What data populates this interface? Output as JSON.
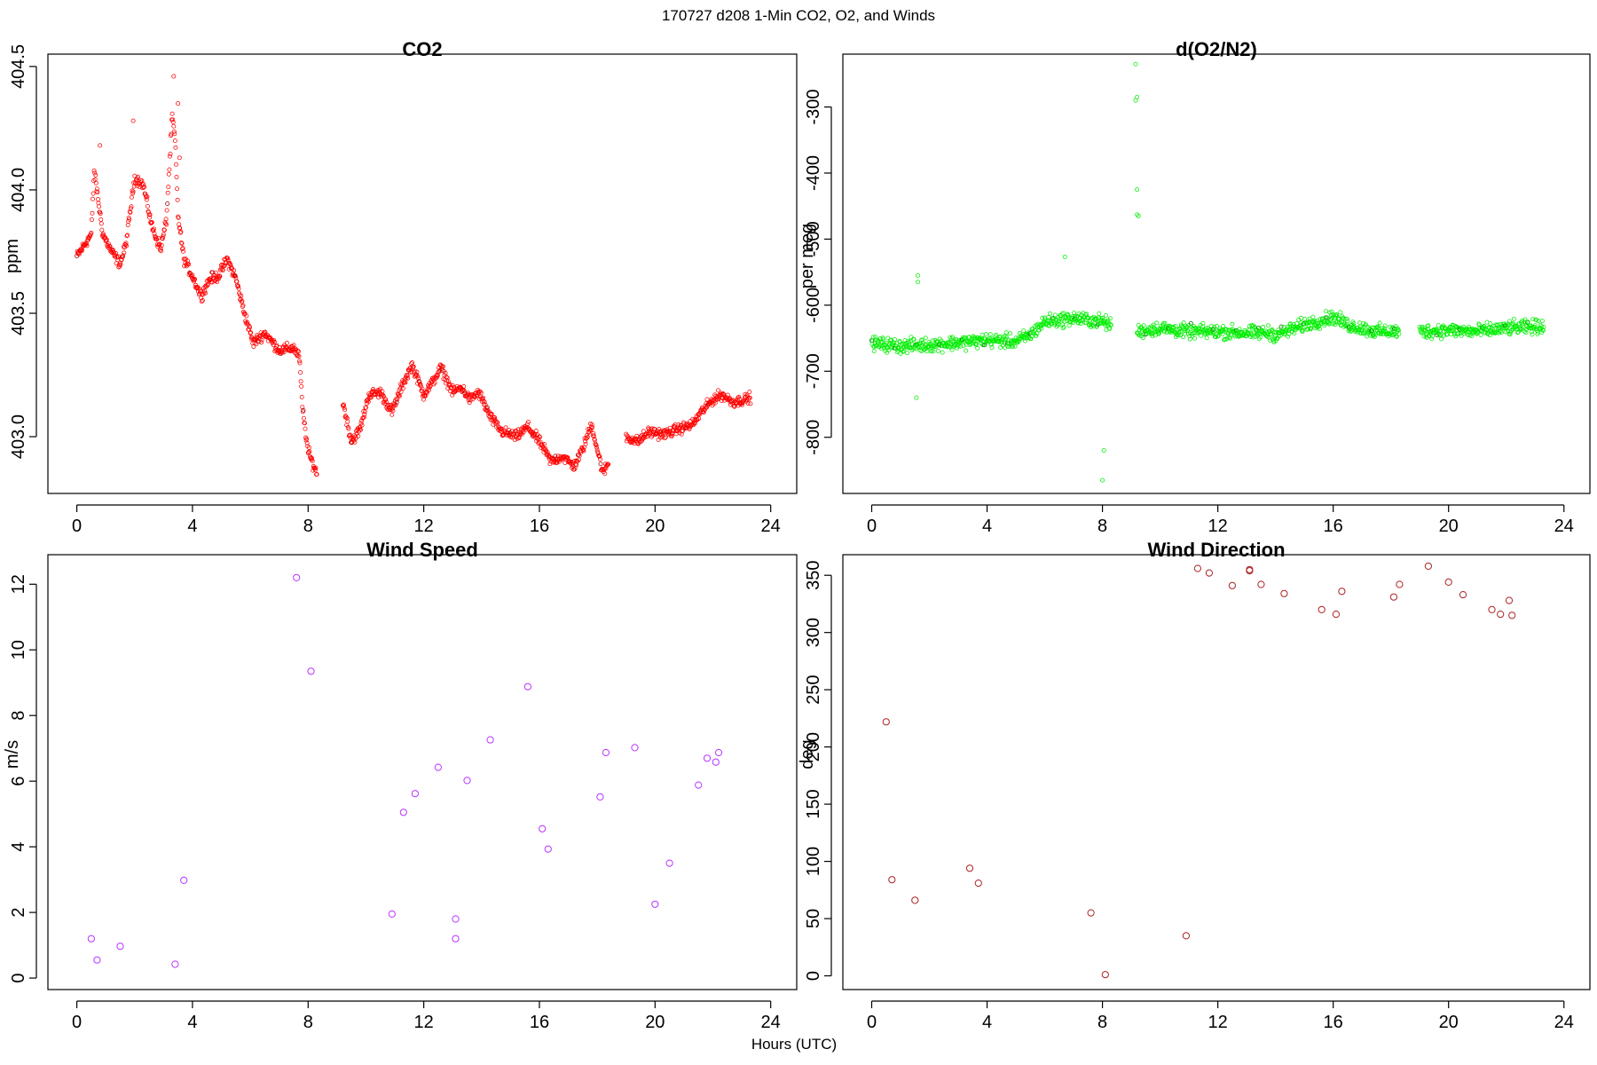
{
  "figure": {
    "title": "170727   d208   1-Min CO2, O2, and Winds",
    "xlabel": "Hours (UTC)"
  },
  "chart_data": [
    {
      "id": "co2",
      "type": "scatter",
      "title": "CO2",
      "ylabel": "ppm",
      "xlim": [
        -1,
        24.9
      ],
      "ylim": [
        402.77,
        404.55
      ],
      "xticks": [
        0,
        4,
        8,
        12,
        16,
        20,
        24
      ],
      "yticks": [
        403.0,
        403.5,
        404.0,
        404.5
      ],
      "ytick_labels": [
        "403.0",
        "403.5",
        "404.0",
        "404.5"
      ],
      "marker_size": "small",
      "series": [
        {
          "color": "#ff0000",
          "dark_color": "#990000"
        }
      ],
      "profile": [
        [
          0.0,
          403.73
        ],
        [
          0.5,
          403.82
        ],
        [
          0.6,
          404.08
        ],
        [
          0.9,
          403.82
        ],
        [
          1.2,
          403.75
        ],
        [
          1.5,
          403.7
        ],
        [
          1.7,
          403.78
        ],
        [
          2.0,
          404.05
        ],
        [
          2.3,
          404.02
        ],
        [
          2.6,
          403.85
        ],
        [
          2.9,
          403.76
        ],
        [
          3.1,
          403.88
        ],
        [
          3.3,
          404.3
        ],
        [
          3.4,
          404.2
        ],
        [
          3.5,
          403.9
        ],
        [
          3.7,
          403.72
        ],
        [
          4.0,
          403.65
        ],
        [
          4.3,
          403.57
        ],
        [
          4.6,
          403.64
        ],
        [
          4.9,
          403.65
        ],
        [
          5.2,
          403.72
        ],
        [
          5.5,
          403.64
        ],
        [
          5.8,
          403.5
        ],
        [
          6.1,
          403.38
        ],
        [
          6.5,
          403.42
        ],
        [
          7.0,
          403.35
        ],
        [
          7.5,
          403.36
        ],
        [
          7.7,
          403.32
        ],
        [
          7.8,
          403.12
        ],
        [
          8.0,
          402.94
        ],
        [
          8.3,
          402.85
        ]
      ],
      "profile_b": [
        [
          9.2,
          403.14
        ],
        [
          9.5,
          402.98
        ],
        [
          9.8,
          403.03
        ],
        [
          10.1,
          403.17
        ],
        [
          10.5,
          403.18
        ],
        [
          10.9,
          403.1
        ],
        [
          11.3,
          403.22
        ],
        [
          11.6,
          403.29
        ],
        [
          12.0,
          403.17
        ],
        [
          12.3,
          403.22
        ],
        [
          12.6,
          403.28
        ],
        [
          13.0,
          403.18
        ],
        [
          13.3,
          403.2
        ],
        [
          13.6,
          403.15
        ],
        [
          13.9,
          403.18
        ],
        [
          14.3,
          403.08
        ],
        [
          14.7,
          403.02
        ],
        [
          15.2,
          403.0
        ],
        [
          15.6,
          403.04
        ],
        [
          16.0,
          402.98
        ],
        [
          16.4,
          402.9
        ],
        [
          16.8,
          402.92
        ],
        [
          17.2,
          402.88
        ],
        [
          17.5,
          402.95
        ],
        [
          17.8,
          403.05
        ],
        [
          18.0,
          402.95
        ],
        [
          18.2,
          402.85
        ],
        [
          18.4,
          402.9
        ]
      ],
      "profile_c": [
        [
          19.0,
          403.0
        ],
        [
          19.4,
          402.98
        ],
        [
          19.8,
          403.02
        ],
        [
          20.3,
          403.01
        ],
        [
          20.8,
          403.03
        ],
        [
          21.3,
          403.05
        ],
        [
          21.6,
          403.1
        ],
        [
          22.0,
          403.15
        ],
        [
          22.3,
          403.17
        ],
        [
          22.7,
          403.14
        ],
        [
          23.1,
          403.15
        ],
        [
          23.3,
          403.16
        ]
      ],
      "outliers": [
        [
          3.35,
          404.46
        ],
        [
          1.95,
          404.28
        ],
        [
          3.5,
          404.35
        ],
        [
          0.8,
          404.18
        ],
        [
          3.55,
          404.13
        ]
      ]
    },
    {
      "id": "o2",
      "type": "scatter",
      "title": "d(O2/N2)",
      "ylabel": "per meg",
      "xlim": [
        -1,
        24.9
      ],
      "ylim": [
        -885,
        -220
      ],
      "xticks": [
        0,
        4,
        8,
        12,
        16,
        20,
        24
      ],
      "yticks": [
        -800,
        -700,
        -600,
        -500,
        -400,
        -300
      ],
      "ytick_labels": [
        "-800",
        "-700",
        "-600",
        "-500",
        "-400",
        "-300"
      ],
      "marker_size": "small",
      "series": [
        {
          "color": "#00ee00",
          "dark_color": "#006600"
        }
      ],
      "profile": [
        [
          0.0,
          -658
        ],
        [
          1.0,
          -662
        ],
        [
          2.0,
          -660
        ],
        [
          3.5,
          -655
        ],
        [
          4.0,
          -653
        ],
        [
          5.0,
          -655
        ],
        [
          5.5,
          -645
        ],
        [
          6.0,
          -625
        ],
        [
          7.0,
          -620
        ],
        [
          8.0,
          -625
        ],
        [
          8.3,
          -630
        ]
      ],
      "profile_b": [
        [
          9.2,
          -640
        ],
        [
          10.0,
          -635
        ],
        [
          11.0,
          -640
        ],
        [
          12.0,
          -640
        ],
        [
          13.0,
          -642
        ],
        [
          13.8,
          -642
        ],
        [
          14.0,
          -645
        ],
        [
          15.0,
          -630
        ],
        [
          16.0,
          -618
        ],
        [
          16.5,
          -630
        ],
        [
          17.5,
          -640
        ],
        [
          18.3,
          -640
        ]
      ],
      "profile_c": [
        [
          19.0,
          -640
        ],
        [
          20.0,
          -638
        ],
        [
          21.0,
          -640
        ],
        [
          22.0,
          -635
        ],
        [
          23.3,
          -632
        ]
      ],
      "outliers": [
        [
          9.15,
          -235
        ],
        [
          9.15,
          -290
        ],
        [
          9.2,
          -285
        ],
        [
          9.2,
          -425
        ],
        [
          9.2,
          -463
        ],
        [
          9.25,
          -465
        ],
        [
          8.0,
          -865
        ],
        [
          8.05,
          -820
        ],
        [
          1.6,
          -555
        ],
        [
          1.6,
          -565
        ],
        [
          6.7,
          -527
        ],
        [
          1.55,
          -740
        ]
      ]
    },
    {
      "id": "wind_speed",
      "type": "scatter",
      "title": "Wind Speed",
      "ylabel": "m/s",
      "xlim": [
        -1,
        24.9
      ],
      "ylim": [
        -0.35,
        12.9
      ],
      "xticks": [
        0,
        4,
        8,
        12,
        16,
        20,
        24
      ],
      "yticks": [
        0,
        2,
        4,
        6,
        8,
        10,
        12
      ],
      "ytick_labels": [
        "0",
        "2",
        "4",
        "6",
        "8",
        "10",
        "12"
      ],
      "marker_size": "large",
      "series": [
        {
          "color": "#bb33ff"
        }
      ],
      "x": [
        0.5,
        0.7,
        1.5,
        3.4,
        3.7,
        7.6,
        8.1,
        10.9,
        11.3,
        11.7,
        12.5,
        13.1,
        13.1,
        13.5,
        14.3,
        15.6,
        16.1,
        16.3,
        18.1,
        18.3,
        19.3,
        20.0,
        20.5,
        21.5,
        21.8,
        22.1,
        22.2
      ],
      "y": [
        1.2,
        0.55,
        0.97,
        0.42,
        2.98,
        12.2,
        9.35,
        1.95,
        5.05,
        5.62,
        6.42,
        1.8,
        1.2,
        6.02,
        7.26,
        8.88,
        4.55,
        3.93,
        5.52,
        6.87,
        7.02,
        2.25,
        3.5,
        5.88,
        6.7,
        6.58,
        6.87
      ]
    },
    {
      "id": "wind_direction",
      "type": "scatter",
      "title": "Wind Direction",
      "ylabel": "deg",
      "xlim": [
        -1,
        24.9
      ],
      "ylim": [
        -12,
        368
      ],
      "xticks": [
        0,
        4,
        8,
        12,
        16,
        20,
        24
      ],
      "yticks": [
        0,
        50,
        100,
        150,
        200,
        250,
        300,
        350
      ],
      "ytick_labels": [
        "0",
        "50",
        "100",
        "150",
        "200",
        "250",
        "300",
        "350"
      ],
      "marker_size": "large",
      "series": [
        {
          "color": "#aa2222"
        }
      ],
      "x": [
        0.5,
        0.7,
        1.5,
        3.4,
        3.7,
        7.6,
        8.1,
        10.9,
        11.3,
        11.7,
        12.5,
        13.1,
        13.1,
        13.5,
        14.3,
        15.6,
        16.1,
        16.3,
        18.1,
        18.3,
        19.3,
        20.0,
        20.5,
        21.5,
        21.8,
        22.1,
        22.2
      ],
      "y": [
        222,
        84,
        66,
        94,
        81,
        55,
        1,
        35,
        356,
        352,
        341,
        355,
        354,
        342,
        334,
        320,
        316,
        336,
        331,
        342,
        358,
        344,
        333,
        320,
        316,
        328,
        315
      ]
    }
  ]
}
